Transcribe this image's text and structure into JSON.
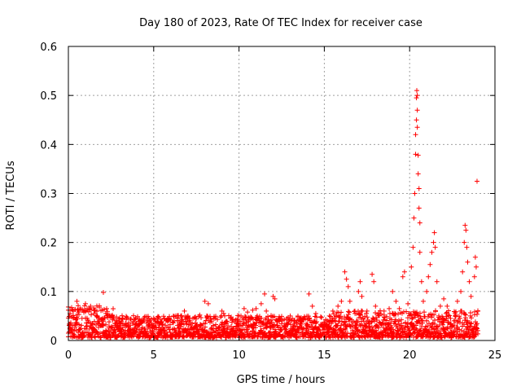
{
  "chart_data": {
    "type": "scatter",
    "title": "Day 180 of 2023, Rate Of TEC Index for receiver case",
    "xlabel": "GPS time / hours",
    "ylabel": "ROTI / TECUs",
    "xlim": [
      0,
      25
    ],
    "ylim": [
      0,
      0.6
    ],
    "x_ticks": [
      0,
      5,
      10,
      15,
      20,
      25
    ],
    "y_ticks": [
      0,
      0.1,
      0.2,
      0.3,
      0.4,
      0.5,
      0.6
    ],
    "x_tick_labels": [
      "0",
      "5",
      "10",
      "15",
      "20",
      "25"
    ],
    "y_tick_labels": [
      "0",
      "0.1",
      "0.2",
      "0.3",
      "0.4",
      "0.5",
      "0.6"
    ],
    "grid": true,
    "marker": "+",
    "color": "#ff0000",
    "x_range_hours": [
      0,
      24
    ],
    "points": [
      [
        0.0,
        0.062
      ],
      [
        0.1,
        0.055
      ],
      [
        0.2,
        0.048
      ],
      [
        0.4,
        0.063
      ],
      [
        0.5,
        0.08
      ],
      [
        0.6,
        0.058
      ],
      [
        0.8,
        0.045
      ],
      [
        1.0,
        0.075
      ],
      [
        1.1,
        0.062
      ],
      [
        1.3,
        0.07
      ],
      [
        1.5,
        0.055
      ],
      [
        1.7,
        0.05
      ],
      [
        1.8,
        0.042
      ],
      [
        2.0,
        0.062
      ],
      [
        2.05,
        0.098
      ],
      [
        2.2,
        0.055
      ],
      [
        2.4,
        0.05
      ],
      [
        2.6,
        0.042
      ],
      [
        2.8,
        0.035
      ],
      [
        3.0,
        0.03
      ],
      [
        3.4,
        0.03
      ],
      [
        3.8,
        0.038
      ],
      [
        4.0,
        0.035
      ],
      [
        4.4,
        0.042
      ],
      [
        4.8,
        0.04
      ],
      [
        5.0,
        0.045
      ],
      [
        5.3,
        0.048
      ],
      [
        5.6,
        0.045
      ],
      [
        6.0,
        0.042
      ],
      [
        6.4,
        0.045
      ],
      [
        6.8,
        0.06
      ],
      [
        7.0,
        0.05
      ],
      [
        7.3,
        0.045
      ],
      [
        7.7,
        0.052
      ],
      [
        8.0,
        0.08
      ],
      [
        8.2,
        0.075
      ],
      [
        8.5,
        0.045
      ],
      [
        9.0,
        0.06
      ],
      [
        9.1,
        0.055
      ],
      [
        9.5,
        0.045
      ],
      [
        9.8,
        0.042
      ],
      [
        10.0,
        0.05
      ],
      [
        10.3,
        0.065
      ],
      [
        10.5,
        0.058
      ],
      [
        10.8,
        0.062
      ],
      [
        11.0,
        0.065
      ],
      [
        11.3,
        0.075
      ],
      [
        11.5,
        0.095
      ],
      [
        11.6,
        0.06
      ],
      [
        12.0,
        0.09
      ],
      [
        12.1,
        0.085
      ],
      [
        12.4,
        0.045
      ],
      [
        12.8,
        0.045
      ],
      [
        13.0,
        0.05
      ],
      [
        13.4,
        0.04
      ],
      [
        13.8,
        0.045
      ],
      [
        14.1,
        0.095
      ],
      [
        14.3,
        0.07
      ],
      [
        14.5,
        0.055
      ],
      [
        15.0,
        0.035
      ],
      [
        15.3,
        0.05
      ],
      [
        15.5,
        0.06
      ],
      [
        15.8,
        0.07
      ],
      [
        16.0,
        0.08
      ],
      [
        16.2,
        0.14
      ],
      [
        16.3,
        0.125
      ],
      [
        16.4,
        0.11
      ],
      [
        16.5,
        0.08
      ],
      [
        16.8,
        0.055
      ],
      [
        17.0,
        0.1
      ],
      [
        17.1,
        0.12
      ],
      [
        17.2,
        0.09
      ],
      [
        17.5,
        0.06
      ],
      [
        17.8,
        0.135
      ],
      [
        17.9,
        0.12
      ],
      [
        18.0,
        0.07
      ],
      [
        18.2,
        0.055
      ],
      [
        18.5,
        0.06
      ],
      [
        18.8,
        0.065
      ],
      [
        19.0,
        0.1
      ],
      [
        19.2,
        0.08
      ],
      [
        19.4,
        0.065
      ],
      [
        19.6,
        0.13
      ],
      [
        19.7,
        0.14
      ],
      [
        19.9,
        0.075
      ],
      [
        20.1,
        0.15
      ],
      [
        20.2,
        0.19
      ],
      [
        20.25,
        0.25
      ],
      [
        20.3,
        0.3
      ],
      [
        20.35,
        0.38
      ],
      [
        20.35,
        0.42
      ],
      [
        20.4,
        0.45
      ],
      [
        20.4,
        0.495
      ],
      [
        20.42,
        0.51
      ],
      [
        20.45,
        0.5
      ],
      [
        20.45,
        0.47
      ],
      [
        20.45,
        0.435
      ],
      [
        20.5,
        0.378
      ],
      [
        20.5,
        0.34
      ],
      [
        20.55,
        0.31
      ],
      [
        20.55,
        0.27
      ],
      [
        20.6,
        0.24
      ],
      [
        20.6,
        0.18
      ],
      [
        20.7,
        0.12
      ],
      [
        20.8,
        0.08
      ],
      [
        21.0,
        0.1
      ],
      [
        21.1,
        0.13
      ],
      [
        21.2,
        0.155
      ],
      [
        21.3,
        0.18
      ],
      [
        21.4,
        0.2
      ],
      [
        21.45,
        0.22
      ],
      [
        21.5,
        0.19
      ],
      [
        21.6,
        0.12
      ],
      [
        21.8,
        0.07
      ],
      [
        22.0,
        0.085
      ],
      [
        22.2,
        0.07
      ],
      [
        22.4,
        0.045
      ],
      [
        22.6,
        0.04
      ],
      [
        22.8,
        0.08
      ],
      [
        23.0,
        0.1
      ],
      [
        23.1,
        0.14
      ],
      [
        23.2,
        0.2
      ],
      [
        23.25,
        0.235
      ],
      [
        23.3,
        0.225
      ],
      [
        23.35,
        0.19
      ],
      [
        23.4,
        0.16
      ],
      [
        23.5,
        0.12
      ],
      [
        23.6,
        0.09
      ],
      [
        23.8,
        0.13
      ],
      [
        23.85,
        0.17
      ],
      [
        23.9,
        0.15
      ],
      [
        23.95,
        0.325
      ],
      [
        24.0,
        0.06
      ]
    ]
  }
}
